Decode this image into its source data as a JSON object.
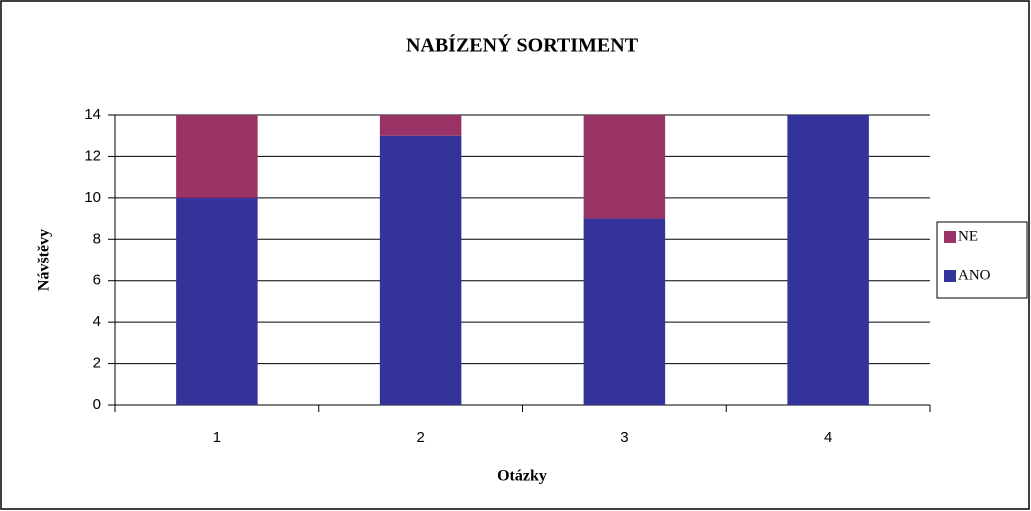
{
  "chart_data": {
    "type": "stacked_bar",
    "title": "NABÍZENÝ SORTIMENT",
    "x_label": "Otázky",
    "y_label": "Návštěvy",
    "categories": [
      "1",
      "2",
      "3",
      "4"
    ],
    "series": [
      {
        "name": "ANO",
        "color": "#333399",
        "values": [
          10,
          13,
          9,
          14
        ]
      },
      {
        "name": "NE",
        "color": "#993366",
        "values": [
          4,
          1,
          5,
          0
        ]
      }
    ],
    "ylim": [
      0,
      14
    ],
    "yticks": [
      0,
      2,
      4,
      6,
      8,
      10,
      12,
      14
    ],
    "grid": true,
    "legend": "right"
  }
}
